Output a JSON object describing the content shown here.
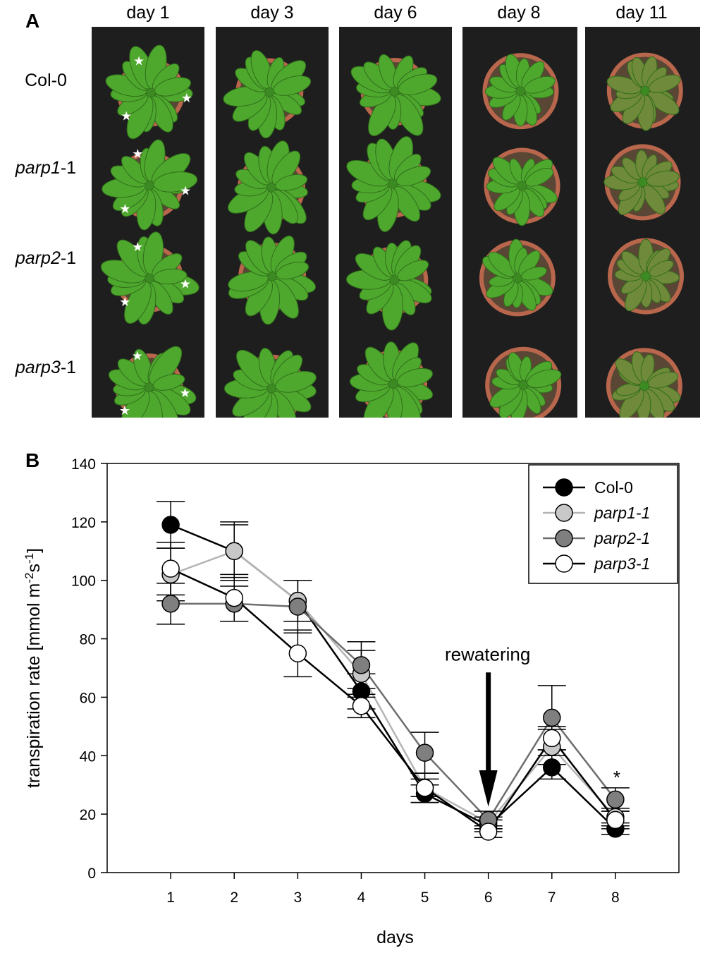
{
  "panel_a": {
    "letter": "A",
    "days": [
      "day 1",
      "day 3",
      "day 6",
      "day 8",
      "day 11"
    ],
    "genotypes": [
      {
        "base": "Col-0",
        "italic_part": "",
        "suffix": ""
      },
      {
        "base": "",
        "italic_part": "parp1",
        "suffix": "-1"
      },
      {
        "base": "",
        "italic_part": "parp2",
        "suffix": "-1"
      },
      {
        "base": "",
        "italic_part": "parp3",
        "suffix": "-1"
      }
    ],
    "colors": {
      "background": "#1e1e1e",
      "leaf": "#4fa82e",
      "leaf_dry": "#6f8a3a",
      "pot": "#b8664c",
      "soil": "#5a4634"
    }
  },
  "chart_data": {
    "type": "line",
    "panel_letter": "B",
    "xlabel": "days",
    "ylabel": "transpiration rate [mmol m-2s-1]",
    "x": [
      1,
      2,
      3,
      4,
      5,
      6,
      7,
      8
    ],
    "xlim": [
      0,
      9
    ],
    "ylim": [
      0,
      140
    ],
    "yticks": [
      0,
      20,
      40,
      60,
      80,
      100,
      120,
      140
    ],
    "legend_position": "top-right",
    "series": [
      {
        "name": "Col-0",
        "italic": false,
        "marker_fill": "#000000",
        "line_color": "#000000",
        "values": [
          119,
          110,
          93,
          62,
          27,
          16,
          36,
          15
        ],
        "errors": [
          8,
          10,
          7,
          6,
          3,
          2,
          4,
          2
        ]
      },
      {
        "name": "parp1-1",
        "italic": true,
        "marker_fill": "#c8c8c8",
        "line_color": "#b4b4b4",
        "values": [
          102,
          110,
          93,
          68,
          29,
          17,
          43,
          19
        ],
        "errors": [
          9,
          9,
          7,
          8,
          3,
          2,
          6,
          3
        ]
      },
      {
        "name": "parp2-1",
        "italic": true,
        "marker_fill": "#7f7f7f",
        "line_color": "#6e6e6e",
        "values": [
          92,
          92,
          91,
          71,
          41,
          18,
          53,
          25
        ],
        "errors": [
          7,
          6,
          9,
          8,
          7,
          3,
          11,
          4
        ]
      },
      {
        "name": "parp3-1",
        "italic": true,
        "marker_fill": "#ffffff",
        "line_color": "#000000",
        "values": [
          104,
          94,
          75,
          57,
          29,
          14,
          46,
          18
        ],
        "errors": [
          9,
          8,
          8,
          4,
          5,
          2,
          4,
          3
        ]
      }
    ],
    "annotations": [
      {
        "text": "rewatering",
        "x": 6,
        "type": "arrow"
      },
      {
        "text": "*",
        "x": 8,
        "type": "significance"
      }
    ]
  }
}
